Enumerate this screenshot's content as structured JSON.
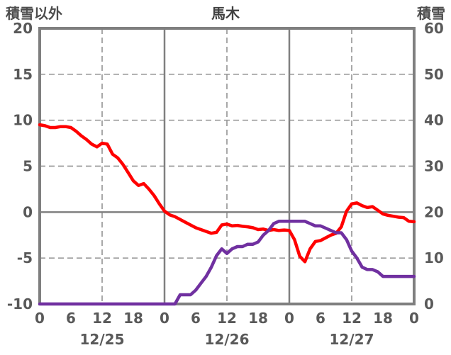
{
  "header": {
    "left_axis_title": "積雪以外",
    "chart_title": "馬木",
    "right_axis_title": "積雪"
  },
  "colors": {
    "red_series": "#FF0000",
    "purple_series": "#7030A0",
    "frame": "#7F7F7F",
    "solid_grid": "#808080",
    "dashed_grid": "#9A9A9A",
    "text": "#595959",
    "title_text": "#404040"
  },
  "chart_data": {
    "type": "line",
    "title": "馬木",
    "station": "馬木",
    "left_axis": {
      "label": "積雪以外",
      "min": -10,
      "max": 20,
      "ticks": [
        20,
        15,
        10,
        5,
        0,
        -5,
        -10
      ],
      "dashed_gridline_values": [
        15,
        10,
        5,
        -5
      ],
      "solid_gridline_values": [
        0
      ]
    },
    "right_axis": {
      "label": "積雪",
      "min": 0,
      "max": 60,
      "ticks": [
        60,
        50,
        40,
        30,
        20,
        10,
        0
      ]
    },
    "x_axis": {
      "total_hours": 72,
      "start_hour": 0,
      "step_hours": 1,
      "hour_tick_interval": 6,
      "hour_tick_labels": [
        "0",
        "6",
        "12",
        "18",
        "0",
        "6",
        "12",
        "18",
        "0",
        "6",
        "12",
        "18",
        "0"
      ],
      "date_labels": [
        "12/25",
        "12/26",
        "12/27"
      ],
      "date_label_center_hours": [
        12,
        36,
        60
      ],
      "dashed_gridline_hours": [
        12,
        36,
        60
      ],
      "solid_gridline_hours": [
        24,
        48
      ]
    },
    "grid": {
      "legend": "none",
      "background": "#ffffff"
    },
    "series": [
      {
        "name": "red-line-left-axis",
        "axis": "left",
        "color": "#FF0000",
        "values": [
          9.5,
          9.4,
          9.2,
          9.2,
          9.3,
          9.3,
          9.2,
          8.8,
          8.3,
          7.9,
          7.4,
          7.1,
          7.5,
          7.4,
          6.3,
          5.9,
          5.2,
          4.3,
          3.4,
          2.9,
          3.1,
          2.5,
          1.8,
          0.9,
          0.1,
          -0.3,
          -0.5,
          -0.8,
          -1.1,
          -1.4,
          -1.7,
          -1.9,
          -2.1,
          -2.3,
          -2.2,
          -1.4,
          -1.3,
          -1.5,
          -1.45,
          -1.55,
          -1.6,
          -1.7,
          -1.9,
          -1.85,
          -2.0,
          -1.9,
          -2.0,
          -1.95,
          -2.0,
          -3.0,
          -4.8,
          -5.4,
          -4.0,
          -3.2,
          -3.1,
          -2.8,
          -2.5,
          -2.3,
          -1.6,
          0.1,
          0.9,
          1.0,
          0.7,
          0.5,
          0.6,
          0.2,
          -0.2,
          -0.35,
          -0.45,
          -0.55,
          -0.6,
          -1.0,
          -1.05
        ]
      },
      {
        "name": "purple-line-right-axis",
        "axis": "right",
        "color": "#7030A0",
        "values": [
          0,
          0,
          0,
          0,
          0,
          0,
          0,
          0,
          0,
          0,
          0,
          0,
          0,
          0,
          0,
          0,
          0,
          0,
          0,
          0,
          0,
          0,
          0,
          0,
          0,
          0,
          0,
          2,
          2,
          2,
          3,
          4.5,
          6,
          8,
          10.5,
          12,
          11,
          12,
          12.5,
          12.5,
          13,
          13,
          13.5,
          15,
          16,
          17.5,
          18,
          18,
          18,
          18,
          18,
          18,
          17.5,
          17,
          17,
          16.5,
          16,
          15.5,
          15.5,
          14,
          11.5,
          10,
          8,
          7.5,
          7.5,
          7,
          6,
          6,
          6,
          6,
          6,
          6,
          6
        ]
      }
    ]
  }
}
